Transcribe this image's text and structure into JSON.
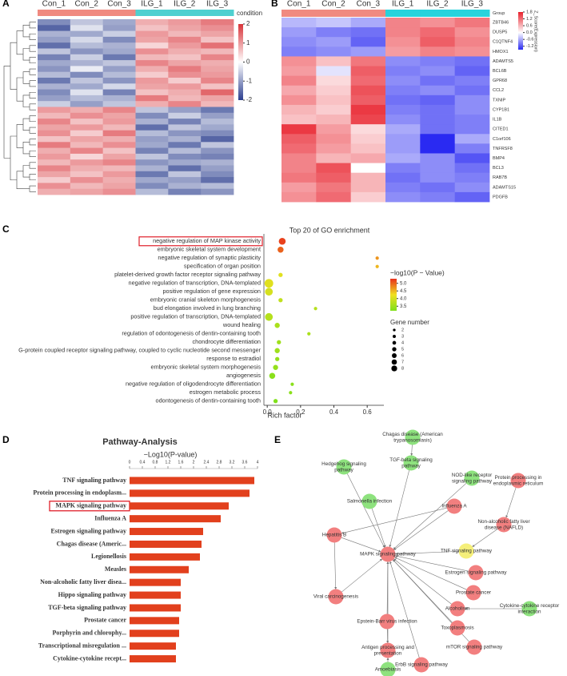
{
  "chart_data": [
    {
      "type": "heatmap",
      "panel": "A",
      "columns": [
        "Con_1",
        "Con_2",
        "Con_3",
        "ILG_1",
        "ILG_2",
        "ILG_3"
      ],
      "column_colors": [
        "#f08a80",
        "#f08a80",
        "#f08a80",
        "#4fd0d0",
        "#4fd0d0",
        "#4fd0d0"
      ],
      "legend_title": "condition",
      "colorscale": [
        "#2c3f8f",
        "#ffffff",
        "#d8343a"
      ],
      "clim": [
        -2,
        2
      ],
      "cticks": [
        2,
        1,
        0,
        -1,
        -2
      ],
      "values": [
        [
          -1.2,
          -0.6,
          -0.9,
          0.8,
          1.0,
          1.3
        ],
        [
          -1.6,
          -0.3,
          -1.0,
          0.6,
          0.9,
          1.1
        ],
        [
          -0.8,
          -0.9,
          -0.5,
          1.0,
          0.7,
          0.9
        ],
        [
          -1.0,
          -0.4,
          -1.2,
          0.9,
          1.2,
          0.6
        ],
        [
          -1.5,
          -0.7,
          -0.8,
          0.4,
          1.0,
          1.4
        ],
        [
          -0.6,
          -1.1,
          -0.9,
          1.1,
          0.8,
          0.7
        ],
        [
          -1.3,
          -0.5,
          -1.4,
          0.7,
          0.6,
          1.2
        ],
        [
          -0.9,
          -0.8,
          -0.6,
          1.2,
          0.9,
          0.8
        ],
        [
          -1.1,
          -0.2,
          -1.0,
          0.8,
          1.3,
          0.9
        ],
        [
          -0.7,
          -1.2,
          -0.7,
          0.5,
          1.1,
          1.0
        ],
        [
          -1.4,
          -0.6,
          -1.1,
          1.0,
          0.5,
          1.2
        ],
        [
          -0.8,
          -0.9,
          -0.4,
          0.9,
          1.0,
          0.6
        ],
        [
          -1.2,
          -0.3,
          -1.3,
          0.6,
          0.8,
          1.5
        ],
        [
          -1.0,
          -0.7,
          -0.8,
          1.3,
          0.7,
          0.9
        ],
        [
          -0.5,
          -1.0,
          -0.6,
          0.8,
          1.2,
          0.7
        ],
        [
          1.0,
          0.8,
          1.2,
          -0.6,
          -1.0,
          -1.4
        ],
        [
          0.7,
          1.1,
          0.9,
          -1.2,
          -0.5,
          -1.0
        ],
        [
          1.2,
          0.6,
          1.0,
          -0.8,
          -1.3,
          -0.7
        ],
        [
          0.9,
          1.0,
          0.7,
          -1.5,
          -0.6,
          -0.9
        ],
        [
          1.1,
          0.5,
          1.3,
          -0.7,
          -1.1,
          -1.2
        ],
        [
          0.6,
          0.9,
          0.8,
          -1.0,
          -0.8,
          -1.6
        ],
        [
          1.3,
          0.7,
          1.1,
          -0.9,
          -1.4,
          -0.6
        ],
        [
          0.8,
          1.2,
          0.6,
          -1.3,
          -0.7,
          -1.1
        ],
        [
          1.0,
          0.4,
          0.9,
          -0.6,
          -1.2,
          -1.3
        ],
        [
          0.7,
          1.0,
          1.2,
          -1.1,
          -0.9,
          -0.8
        ],
        [
          1.2,
          0.8,
          0.7,
          -0.8,
          -1.5,
          -1.0
        ],
        [
          0.9,
          0.6,
          1.0,
          -1.4,
          -0.6,
          -1.2
        ],
        [
          0.5,
          1.1,
          0.8,
          -0.9,
          -1.0,
          -1.5
        ],
        [
          1.1,
          0.7,
          0.9,
          -1.2,
          -0.8,
          -0.7
        ],
        [
          0.8,
          0.9,
          1.1,
          -0.7,
          -1.3,
          -1.1
        ]
      ]
    },
    {
      "type": "heatmap",
      "panel": "B",
      "columns": [
        "Con_1",
        "Con_2",
        "Con_3",
        "ILG_1",
        "ILG_2",
        "ILG_3"
      ],
      "column_colors": [
        "#f08a80",
        "#f08a80",
        "#f08a80",
        "#27d3dc",
        "#27d3dc",
        "#27d3dc"
      ],
      "header_label": "Group",
      "legend_title": "Z_Score(Expression)",
      "colorscale": [
        "#2a2af2",
        "#ffffff",
        "#e8202b"
      ],
      "clim": [
        -1.5,
        1.8
      ],
      "cticks": [
        1.8,
        1.2,
        0.6,
        {
          "value": 0,
          "label": "0.0"
        },
        -0.6,
        -1.2
      ],
      "rows": [
        "ZBTB46",
        "DUSP5",
        "C1QTNF4",
        "HMOX1",
        "ADAMTS5",
        "BCL6B",
        "GPR68",
        "CCL2",
        "TXNIP",
        "CYP1B1",
        "IL1B",
        "CITED1",
        "C1orf106",
        "TNFRSF8",
        "BMP4",
        "BCL3",
        "RAB7B",
        "ADAMTS15",
        "PDGFB"
      ],
      "values": [
        [
          -0.5,
          -0.4,
          -0.6,
          1.0,
          0.9,
          1.1
        ],
        [
          -0.7,
          -0.9,
          -1.0,
          1.0,
          1.2,
          0.9
        ],
        [
          -0.8,
          -0.7,
          -1.1,
          0.9,
          1.3,
          1.0
        ],
        [
          -0.9,
          -0.8,
          -0.7,
          0.8,
          1.0,
          0.9
        ],
        [
          0.9,
          0.5,
          1.1,
          -0.8,
          -0.9,
          -1.0
        ],
        [
          0.8,
          -0.2,
          1.3,
          -0.9,
          -0.8,
          -1.1
        ],
        [
          1.0,
          0.3,
          1.2,
          -0.8,
          -1.0,
          -0.9
        ],
        [
          0.7,
          0.4,
          1.4,
          -0.9,
          -0.8,
          -1.0
        ],
        [
          0.9,
          0.5,
          1.3,
          -1.0,
          -1.1,
          -0.8
        ],
        [
          0.6,
          0.4,
          1.6,
          -0.9,
          -1.0,
          -0.8
        ],
        [
          0.5,
          0.6,
          1.5,
          -0.8,
          -1.0,
          -0.9
        ],
        [
          1.6,
          0.8,
          0.3,
          -0.6,
          -1.0,
          -0.9
        ],
        [
          1.3,
          0.9,
          0.4,
          -0.7,
          -1.6,
          -0.6
        ],
        [
          1.2,
          0.8,
          0.5,
          -0.7,
          -1.5,
          -0.9
        ],
        [
          1.0,
          0.6,
          0.7,
          -0.6,
          -0.8,
          -1.2
        ],
        [
          1.0,
          1.4,
          0.0,
          -0.9,
          -0.8,
          -1.0
        ],
        [
          1.1,
          1.3,
          0.6,
          -1.0,
          -0.8,
          -0.9
        ],
        [
          0.8,
          1.1,
          0.6,
          -0.9,
          -1.0,
          -0.8
        ],
        [
          0.9,
          1.2,
          0.4,
          -0.8,
          -0.9,
          -1.1
        ]
      ]
    },
    {
      "type": "dot",
      "panel": "C",
      "title": "Top 20 of GO enrichment",
      "xlabel": "Rich factor",
      "categories": [
        "negative regulation of MAP kinase activity",
        "embryonic skeletal system development",
        "negative regulation of synaptic plasticity",
        "specification of organ position",
        "platelet-derived growth factor receptor signaling pathway",
        "negative regulation of transcription, DNA-templated",
        "positive regulation of gene expression",
        "embryonic cranial skeleton morphogenesis",
        "bud elongation involved in lung branching",
        "positive regulation of transcription, DNA-templated",
        "wound healing",
        "regulation of odontogenesis of dentin-containing tooth",
        "chondrocyte differentiation",
        "G-protein coupled receptor signaling pathway, coupled to cyclic nucleotide second messenger",
        "response to estradiol",
        "embryonic skeletal system morphogenesis",
        "angiogenesis",
        "negative regulation of oligodendrocyte differentiation",
        "estrogen metabolic process",
        "odontogenesis of dentin-containing tooth"
      ],
      "highlight_index": 0,
      "x": [
        0.09,
        0.08,
        0.66,
        0.66,
        0.08,
        0.01,
        0.01,
        0.08,
        0.29,
        0.01,
        0.06,
        0.25,
        0.07,
        0.06,
        0.06,
        0.05,
        0.03,
        0.15,
        0.14,
        0.05
      ],
      "color_values": [
        5.2,
        5.0,
        4.7,
        4.5,
        4.1,
        4.1,
        4.0,
        3.8,
        3.7,
        3.7,
        3.6,
        3.6,
        3.5,
        3.5,
        3.4,
        3.4,
        3.3,
        3.3,
        3.3,
        3.2
      ],
      "sizes": [
        6,
        5,
        2,
        2,
        3,
        8,
        7,
        3,
        2,
        7,
        4,
        2,
        3,
        4,
        3,
        4,
        5,
        2,
        2,
        3
      ],
      "xlim": [
        -0.02,
        0.7
      ],
      "xticks": [
        {
          "value": 0,
          "label": "0.0"
        },
        0.2,
        0.4,
        0.6
      ],
      "color_title": "−log10(P − Value)",
      "colorscale": [
        "#7fe01a",
        "#f0e020",
        "#e8301c"
      ],
      "clim": [
        3.2,
        5.3
      ],
      "cticks": [
        {
          "value": 5,
          "label": "5.0"
        },
        4.5,
        {
          "value": 4,
          "label": "4.0"
        },
        3.5
      ],
      "size_title": "Gene number",
      "size_ticks": [
        2,
        3,
        4,
        5,
        6,
        7,
        8
      ]
    },
    {
      "type": "hbar",
      "panel": "D",
      "title": "Pathway-Analysis",
      "xlabel": "−Log10(P-value)",
      "color": "#e2401d",
      "categories": [
        "TNF signaling pathway",
        "Protein processing in endoplasm...",
        "MAPK signaling pathway",
        "Influenza A",
        "Estrogen signaling pathway",
        "Chagas disease (Americ...",
        "Legionellosis",
        "Measles",
        "Non-alcoholic fatty liver disea...",
        "Hippo signaling pathway",
        "TGF-beta signaling pathway",
        "Prostate cancer",
        "Porphyrin and chlorophy...",
        "Transcriptional misregulation ...",
        "Cytokine-cytokine recept..."
      ],
      "highlight_index": 2,
      "values": [
        3.9,
        3.75,
        3.1,
        2.85,
        2.3,
        2.25,
        2.2,
        1.85,
        1.6,
        1.6,
        1.6,
        1.55,
        1.55,
        1.45,
        1.45
      ],
      "xlim": [
        0,
        4
      ],
      "xticks": [
        0,
        0.4,
        0.8,
        1.2,
        1.6,
        2,
        2.4,
        2.8,
        3.2,
        3.6,
        4
      ]
    },
    {
      "type": "network",
      "panel": "E",
      "nodes": [
        {
          "label": [
            "Chagas disease (American",
            "trypanosomiasis)"
          ],
          "color": "#8ee27e"
        },
        {
          "label": [
            "TGF-beta signaling",
            "pathway"
          ],
          "color": "#8ee27e"
        },
        {
          "label": [
            "Hedgehog signaling",
            "pathway"
          ],
          "color": "#8ee27e"
        },
        {
          "label": [
            "NOD-like receptor",
            "signaling pathway"
          ],
          "color": "#8ee27e"
        },
        {
          "label": [
            "Protein processing in",
            "endoplasmic reticulum"
          ],
          "color": "#f27f7f"
        },
        {
          "label": [
            "Salmonella infection"
          ],
          "color": "#8ee27e"
        },
        {
          "label": [
            "Influenza A"
          ],
          "color": "#f27f7f"
        },
        {
          "label": [
            "Non-alcoholic fatty liver",
            "disease (NAFLD)"
          ],
          "color": "#f27f7f"
        },
        {
          "label": [
            "Hepatitis B"
          ],
          "color": "#f27f7f"
        },
        {
          "label": [
            "TNF signaling pathway"
          ],
          "color": "#f5ef7a"
        },
        {
          "label": [
            "MAPK signaling pathway"
          ],
          "color": "#f27f7f"
        },
        {
          "label": [
            "Estrogen signaling pathway"
          ],
          "color": "#f27f7f"
        },
        {
          "label": [
            "Prostate cancer"
          ],
          "color": "#f27f7f"
        },
        {
          "label": [
            "Viral carcinogenesis"
          ],
          "color": "#f27f7f"
        },
        {
          "label": [
            "Alcoholism"
          ],
          "color": "#f27f7f"
        },
        {
          "label": [
            "Cytokine-cytokine receptor",
            "interaction"
          ],
          "color": "#8ee27e"
        },
        {
          "label": [
            "Epstein-Barr virus infection"
          ],
          "color": "#f27f7f"
        },
        {
          "label": [
            "Toxoplasmosis"
          ],
          "color": "#f27f7f"
        },
        {
          "label": [
            "mTOR signaling pathway"
          ],
          "color": "#f27f7f"
        },
        {
          "label": [
            "Antigen processing and",
            "presentation"
          ],
          "color": "#f27f7f"
        },
        {
          "label": [
            "ErbB signaling pathway"
          ],
          "color": "#f27f7f"
        },
        {
          "label": [
            "Amoebiasis"
          ],
          "color": "#8ee27e"
        }
      ],
      "edges": [
        [
          0,
          1
        ],
        [
          1,
          10
        ],
        [
          2,
          10
        ],
        [
          3,
          10
        ],
        [
          5,
          10
        ],
        [
          6,
          10
        ],
        [
          7,
          9
        ],
        [
          9,
          10
        ],
        [
          4,
          7
        ],
        [
          8,
          10
        ],
        [
          8,
          13
        ],
        [
          13,
          10
        ],
        [
          11,
          10
        ],
        [
          12,
          10
        ],
        [
          14,
          10
        ],
        [
          15,
          14
        ],
        [
          16,
          10
        ],
        [
          17,
          10
        ],
        [
          18,
          10
        ],
        [
          20,
          10
        ],
        [
          16,
          19
        ],
        [
          21,
          19
        ],
        [
          19,
          10
        ],
        [
          6,
          8
        ]
      ]
    }
  ]
}
